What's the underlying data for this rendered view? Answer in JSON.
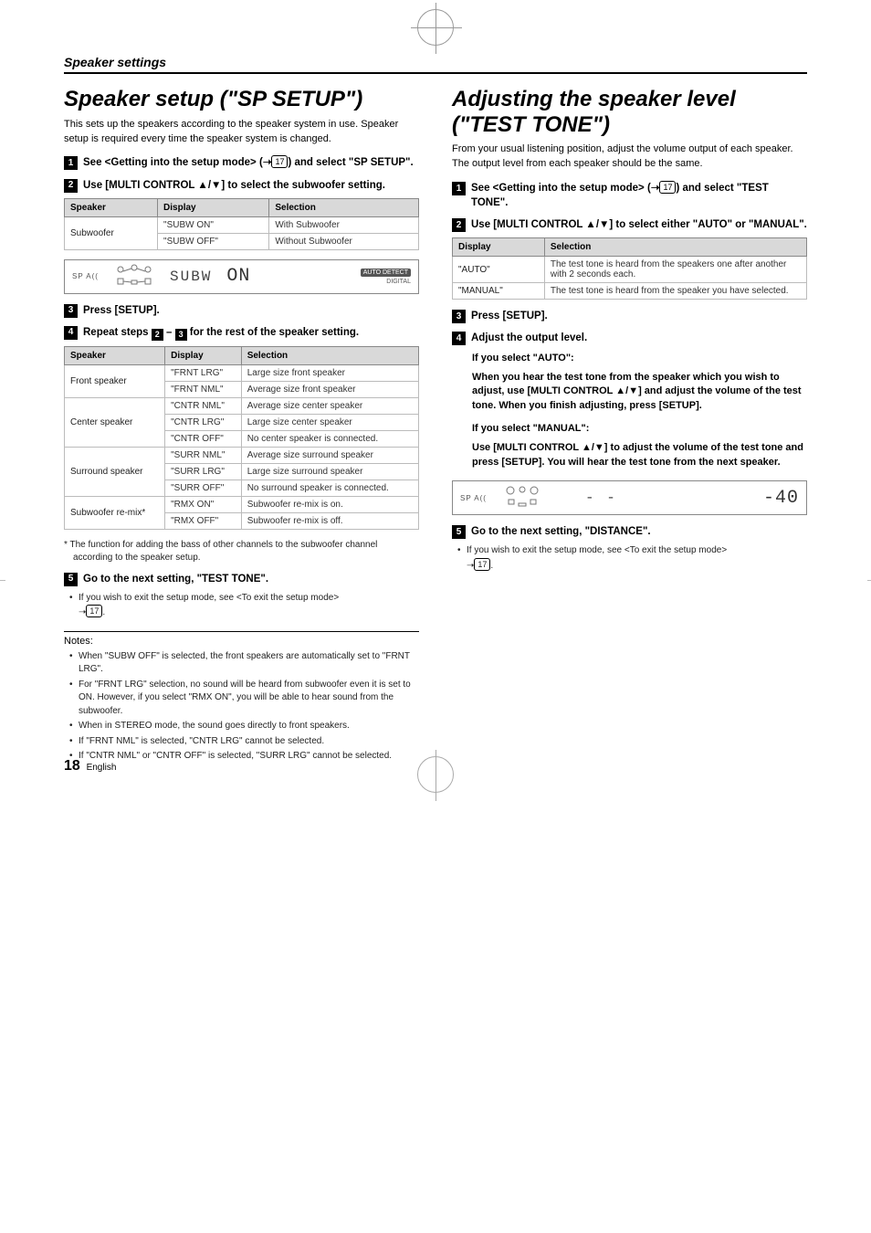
{
  "section_title": "Speaker settings",
  "page_ref": "17",
  "arrow": "➝",
  "left": {
    "h1": "Speaker setup (\"SP SETUP\")",
    "lead": "This sets up the speakers according to the speaker system in use. Speaker setup is required every time the speaker system is changed.",
    "step1": "See <Getting into the setup mode> (",
    "step1_end": ") and select \"SP SETUP\".",
    "step2": "Use [MULTI CONTROL ▲/▼] to select the subwoofer setting.",
    "table1": {
      "headers": [
        "Speaker",
        "Display",
        "Selection"
      ],
      "rows": [
        [
          "Subwoofer",
          "\"SUBW ON\"",
          "With Subwoofer"
        ],
        [
          "",
          "\"SUBW OFF\"",
          "Without Subwoofer"
        ]
      ],
      "rowspans": {
        "0": 2
      }
    },
    "disp1": {
      "spklbl": "SP A((",
      "seg": "SUBW",
      "bigseg": "ON",
      "badge1": "AUTO DETECT",
      "badge2": "DIGITAL"
    },
    "step3": "Press [SETUP].",
    "step4_a": "Repeat steps ",
    "step4_b": " – ",
    "step4_c": " for the rest of the speaker setting.",
    "table2": {
      "headers": [
        "Speaker",
        "Display",
        "Selection"
      ],
      "groups": [
        {
          "speaker": "Front speaker",
          "rows": [
            [
              "\"FRNT LRG\"",
              "Large size front speaker"
            ],
            [
              "\"FRNT NML\"",
              "Average size front speaker"
            ]
          ]
        },
        {
          "speaker": "Center speaker",
          "rows": [
            [
              "\"CNTR NML\"",
              "Average size center speaker"
            ],
            [
              "\"CNTR LRG\"",
              "Large size center speaker"
            ],
            [
              "\"CNTR OFF\"",
              "No center speaker is connected."
            ]
          ]
        },
        {
          "speaker": "Surround speaker",
          "rows": [
            [
              "\"SURR NML\"",
              "Average size surround speaker"
            ],
            [
              "\"SURR LRG\"",
              "Large size surround speaker"
            ],
            [
              "\"SURR OFF\"",
              "No surround speaker is connected."
            ]
          ]
        },
        {
          "speaker": "Subwoofer re-mix*",
          "rows": [
            [
              "\"RMX ON\"",
              "Subwoofer re-mix is on."
            ],
            [
              "\"RMX OFF\"",
              "Subwoofer re-mix is off."
            ]
          ]
        }
      ]
    },
    "footnote": "*  The function for adding the bass of other channels to the subwoofer channel according to the speaker setup.",
    "step5": "Go to the next setting, \"TEST TONE\".",
    "exit_note": "If you wish to exit the setup mode, see <To exit the setup mode>",
    "notes_head": "Notes:",
    "notes": [
      "When \"SUBW OFF\" is selected, the front speakers are automatically set to \"FRNT LRG\".",
      "For \"FRNT LRG\" selection, no sound will be heard from subwoofer even it is set to ON. However, if you select \"RMX ON\", you will be able to hear sound from the subwoofer.",
      "When in STEREO mode, the sound goes directly to front speakers.",
      "If \"FRNT NML\" is selected, \"CNTR LRG\" cannot be selected.",
      "If \"CNTR NML\" or \"CNTR OFF\" is selected, \"SURR LRG\" cannot be selected."
    ]
  },
  "right": {
    "h1": "Adjusting the speaker level (\"TEST TONE\")",
    "lead": "From your usual listening position, adjust the volume output of each speaker. The output level from each speaker should be the same.",
    "step1": "See <Getting into the setup mode> (",
    "step1_end": ") and select \"TEST TONE\".",
    "step2": "Use [MULTI CONTROL ▲/▼] to select either \"AUTO\" or \"MANUAL\".",
    "table": {
      "headers": [
        "Display",
        "Selection"
      ],
      "rows": [
        [
          "\"AUTO\"",
          "The test tone is heard from the speakers one after another with 2 seconds each."
        ],
        [
          "\"MANUAL\"",
          "The test tone is heard from the speaker you have selected."
        ]
      ]
    },
    "step3": "Press [SETUP].",
    "step4": "Adjust the output level.",
    "auto_head": "If you select \"AUTO\":",
    "auto_body": "When you hear the test tone from the speaker which you wish to adjust, use [MULTI CONTROL ▲/▼] and adjust the volume of the test tone. When you finish adjusting, press [SETUP].",
    "manual_head": "If you select \"MANUAL\":",
    "manual_body": "Use [MULTI CONTROL ▲/▼] to adjust the volume of the test tone and press [SETUP]. You will hear the test tone from the next speaker.",
    "disp2": {
      "spklbl": "SP A((",
      "seg": "- -",
      "bigseg": "-40"
    },
    "step5": "Go to the next setting, \"DISTANCE\".",
    "exit_note": "If you wish to exit the setup mode, see <To exit the setup mode>"
  },
  "page_num": "18",
  "page_lang": "English"
}
